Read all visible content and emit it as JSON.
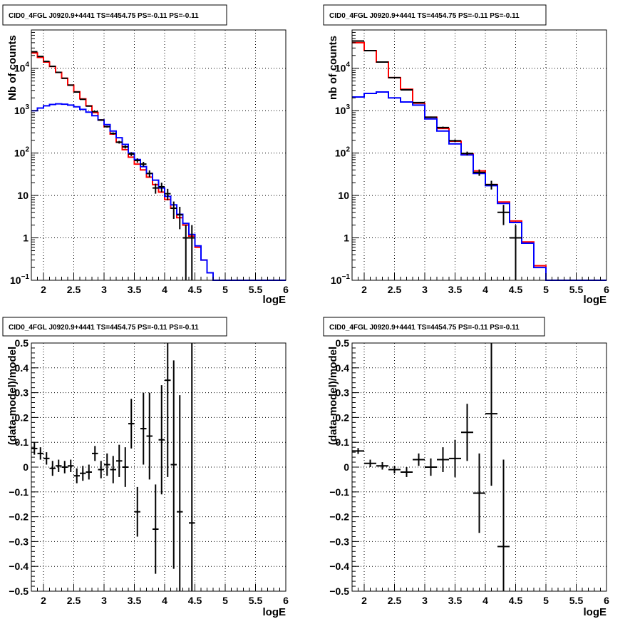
{
  "colors": {
    "model_total": "#ff0000",
    "model_source": "#0000ff",
    "data": "#000000",
    "grid": "#000000",
    "frame": "#000000",
    "background": "#ffffff"
  },
  "chart_data": [
    {
      "type": "line",
      "title": "CID0_4FGL J0920.9+4441 TS=4454.75 PS=-0.11 PS=-0.11",
      "xlabel": "logE",
      "ylabel": "Nb of counts",
      "xlim": [
        1.8,
        6.0
      ],
      "ylim": [
        0.1,
        80000
      ],
      "yscale": "log",
      "grid": true,
      "x_ticks": [
        "2",
        "2.5",
        "3",
        "3.5",
        "4",
        "4.5",
        "5",
        "5.5",
        "6"
      ],
      "y_ticks": [
        {
          "value": 0.1,
          "base": "10",
          "exp": "−1"
        },
        {
          "value": 1,
          "label": "1"
        },
        {
          "value": 10,
          "label": "10"
        },
        {
          "value": 100,
          "base": "10",
          "exp": "2"
        },
        {
          "value": 1000,
          "base": "10",
          "exp": "3"
        },
        {
          "value": 10000,
          "base": "10",
          "exp": "4"
        }
      ],
      "bin_edges": [
        1.8,
        1.9,
        2.0,
        2.1,
        2.2,
        2.3,
        2.4,
        2.5,
        2.6,
        2.7,
        2.8,
        2.9,
        3.0,
        3.1,
        3.2,
        3.3,
        3.4,
        3.5,
        3.6,
        3.7,
        3.8,
        3.9,
        4.0,
        4.1,
        4.2,
        4.3,
        4.4,
        4.5,
        4.6,
        4.7,
        4.8,
        4.9,
        5.0,
        5.1,
        5.2,
        5.3,
        5.4,
        5.5,
        5.6,
        5.7,
        5.8,
        5.9,
        6.0
      ],
      "series": [
        {
          "key": "model_total",
          "values": [
            23000,
            18000,
            14000,
            11000,
            8000,
            5800,
            4000,
            2800,
            1900,
            1300,
            900,
            600,
            420,
            280,
            180,
            120,
            80,
            55,
            40,
            27,
            18,
            12,
            8,
            5,
            3,
            2,
            1.1,
            0.6,
            0.3,
            0.15,
            0.1,
            0.1,
            0.1,
            0.1,
            0.1,
            0.1,
            0.1,
            0.1,
            0.1,
            0.1,
            0.1,
            0.1
          ]
        },
        {
          "key": "model_source",
          "values": [
            1000,
            1150,
            1300,
            1400,
            1450,
            1420,
            1350,
            1230,
            1070,
            920,
            760,
            600,
            470,
            330,
            230,
            160,
            100,
            70,
            48,
            33,
            23,
            15,
            9.5,
            6,
            3.6,
            2.2,
            1.2,
            0.65,
            0.3,
            0.15,
            0.1,
            0.1,
            0.1,
            0.1,
            0.1,
            0.1,
            0.1,
            0.1,
            0.1,
            0.1,
            0.1,
            0.1
          ]
        }
      ],
      "points": [
        {
          "x": 1.85,
          "y": 24500,
          "err": 160
        },
        {
          "x": 1.95,
          "y": 19000,
          "err": 140
        },
        {
          "x": 2.05,
          "y": 14500,
          "err": 120
        },
        {
          "x": 2.15,
          "y": 11100,
          "err": 105
        },
        {
          "x": 2.25,
          "y": 8000,
          "err": 90
        },
        {
          "x": 2.35,
          "y": 5800,
          "err": 76
        },
        {
          "x": 2.45,
          "y": 4000,
          "err": 63
        },
        {
          "x": 2.55,
          "y": 2750,
          "err": 52
        },
        {
          "x": 2.65,
          "y": 1850,
          "err": 43
        },
        {
          "x": 2.75,
          "y": 1280,
          "err": 36
        },
        {
          "x": 2.85,
          "y": 950,
          "err": 31
        },
        {
          "x": 2.95,
          "y": 600,
          "err": 25
        },
        {
          "x": 3.05,
          "y": 420,
          "err": 20
        },
        {
          "x": 3.15,
          "y": 290,
          "err": 17
        },
        {
          "x": 3.25,
          "y": 180,
          "err": 13
        },
        {
          "x": 3.35,
          "y": 140,
          "err": 12
        },
        {
          "x": 3.45,
          "y": 95,
          "err": 10
        },
        {
          "x": 3.55,
          "y": 67,
          "err": 8
        },
        {
          "x": 3.65,
          "y": 55,
          "err": 7
        },
        {
          "x": 3.75,
          "y": 33,
          "err": 6
        },
        {
          "x": 3.85,
          "y": 15,
          "err": 4
        },
        {
          "x": 3.95,
          "y": 16,
          "err": 4
        },
        {
          "x": 4.05,
          "y": 11,
          "err": 3.3
        },
        {
          "x": 4.15,
          "y": 5,
          "err": 2.2
        },
        {
          "x": 4.25,
          "y": 3.5,
          "err": 1.9
        },
        {
          "x": 4.35,
          "y": 1,
          "err": 1
        },
        {
          "x": 4.45,
          "y": 1,
          "err": 1
        }
      ]
    },
    {
      "type": "line",
      "title": "CID0_4FGL J0920.9+4441 TS=4454.75 PS=-0.11 PS=-0.11",
      "xlabel": "logE",
      "ylabel": "nb of counts",
      "xlim": [
        1.8,
        6.0
      ],
      "ylim": [
        0.1,
        80000
      ],
      "yscale": "log",
      "grid": true,
      "x_ticks": [
        "2",
        "2.5",
        "3",
        "3.5",
        "4",
        "4.5",
        "5",
        "5.5",
        "6"
      ],
      "y_ticks": [
        {
          "value": 0.1,
          "base": "10",
          "exp": "−1"
        },
        {
          "value": 1,
          "label": "1"
        },
        {
          "value": 10,
          "label": "10"
        },
        {
          "value": 100,
          "base": "10",
          "exp": "2"
        },
        {
          "value": 1000,
          "base": "10",
          "exp": "3"
        },
        {
          "value": 10000,
          "base": "10",
          "exp": "4"
        }
      ],
      "bin_edges": [
        1.8,
        2.0,
        2.2,
        2.4,
        2.6,
        2.8,
        3.0,
        3.2,
        3.4,
        3.6,
        3.8,
        4.0,
        4.2,
        4.4,
        4.6,
        4.8,
        5.0,
        5.2,
        5.4,
        5.6,
        5.8,
        6.0
      ],
      "series": [
        {
          "key": "model_total",
          "values": [
            40000,
            26000,
            14000,
            6000,
            3200,
            1500,
            700,
            380,
            190,
            95,
            38,
            18,
            7,
            2.5,
            0.8,
            0.22,
            0.1,
            0.1,
            0.1,
            0.1,
            0.1
          ]
        },
        {
          "key": "model_source",
          "values": [
            2100,
            2550,
            2750,
            2000,
            1600,
            1350,
            640,
            330,
            165,
            90,
            33,
            17,
            6.5,
            2.3,
            0.75,
            0.2,
            0.1,
            0.1,
            0.1,
            0.1,
            0.1
          ]
        }
      ],
      "points": [
        {
          "x": 1.9,
          "y": 44000,
          "err": 210
        },
        {
          "x": 2.1,
          "y": 26000,
          "err": 160
        },
        {
          "x": 2.3,
          "y": 14000,
          "err": 118
        },
        {
          "x": 2.5,
          "y": 6000,
          "err": 77
        },
        {
          "x": 2.7,
          "y": 3100,
          "err": 56
        },
        {
          "x": 2.9,
          "y": 1550,
          "err": 39
        },
        {
          "x": 3.1,
          "y": 700,
          "err": 26
        },
        {
          "x": 3.3,
          "y": 400,
          "err": 20
        },
        {
          "x": 3.5,
          "y": 195,
          "err": 14
        },
        {
          "x": 3.7,
          "y": 98,
          "err": 10
        },
        {
          "x": 3.9,
          "y": 35,
          "err": 6
        },
        {
          "x": 4.1,
          "y": 18,
          "err": 4.2
        },
        {
          "x": 4.3,
          "y": 4,
          "err": 2
        },
        {
          "x": 4.5,
          "y": 1,
          "err": 1
        }
      ]
    },
    {
      "type": "scatter",
      "title": "CID0_4FGL J0920.9+4441 TS=4454.75 PS=-0.11 PS=-0.11",
      "xlabel": "logE",
      "ylabel": "(data-model)/model",
      "xlim": [
        1.8,
        6.0
      ],
      "ylim": [
        -0.5,
        0.5
      ],
      "yscale": "linear",
      "grid": true,
      "x_ticks": [
        "2",
        "2.5",
        "3",
        "3.5",
        "4",
        "4.5",
        "5",
        "5.5",
        "6"
      ],
      "y_ticks": [
        {
          "value": -0.5,
          "label": "−0.5"
        },
        {
          "value": -0.4,
          "label": "−0.4"
        },
        {
          "value": -0.3,
          "label": "−0.3"
        },
        {
          "value": -0.2,
          "label": "−0.2"
        },
        {
          "value": -0.1,
          "label": "−0.1"
        },
        {
          "value": 0,
          "label": "0"
        },
        {
          "value": 0.1,
          "label": "0.1"
        },
        {
          "value": 0.2,
          "label": "0.2"
        },
        {
          "value": 0.3,
          "label": "0.3"
        },
        {
          "value": 0.4,
          "label": "0.4"
        },
        {
          "value": 0.5,
          "label": "0.5"
        }
      ],
      "xbin": 0.1,
      "points": [
        {
          "x": 1.85,
          "y": 0.075,
          "err": 0.025
        },
        {
          "x": 1.95,
          "y": 0.055,
          "err": 0.025
        },
        {
          "x": 2.05,
          "y": 0.035,
          "err": 0.025
        },
        {
          "x": 2.15,
          "y": -0.005,
          "err": 0.03
        },
        {
          "x": 2.25,
          "y": 0.005,
          "err": 0.025
        },
        {
          "x": 2.35,
          "y": 0.0,
          "err": 0.025
        },
        {
          "x": 2.45,
          "y": 0.005,
          "err": 0.025
        },
        {
          "x": 2.55,
          "y": -0.035,
          "err": 0.03
        },
        {
          "x": 2.65,
          "y": -0.025,
          "err": 0.03
        },
        {
          "x": 2.75,
          "y": -0.02,
          "err": 0.03
        },
        {
          "x": 2.85,
          "y": 0.055,
          "err": 0.03
        },
        {
          "x": 2.95,
          "y": -0.01,
          "err": 0.035
        },
        {
          "x": 3.05,
          "y": 0.01,
          "err": 0.045
        },
        {
          "x": 3.15,
          "y": -0.01,
          "err": 0.055
        },
        {
          "x": 3.25,
          "y": 0.025,
          "err": 0.065
        },
        {
          "x": 3.35,
          "y": 0.0,
          "err": 0.08
        },
        {
          "x": 3.45,
          "y": 0.175,
          "err": 0.1
        },
        {
          "x": 3.55,
          "y": -0.18,
          "err": 0.1
        },
        {
          "x": 3.65,
          "y": 0.155,
          "err": 0.145
        },
        {
          "x": 3.75,
          "y": 0.125,
          "err": 0.175
        },
        {
          "x": 3.85,
          "y": -0.25,
          "err": 0.18
        },
        {
          "x": 3.95,
          "y": 0.11,
          "err": 0.22
        },
        {
          "x": 4.05,
          "y": 0.35,
          "err": 0.39
        },
        {
          "x": 4.15,
          "y": 0.01,
          "err": 0.42
        },
        {
          "x": 4.25,
          "y": -0.18,
          "err": 0.47
        },
        {
          "x": 4.45,
          "y": -0.225,
          "err": 0.85
        }
      ]
    },
    {
      "type": "scatter",
      "title": "CID0_4FGL J0920.9+4441 TS=4454.75 PS=-0.11 PS=-0.11",
      "xlabel": "logE",
      "ylabel": "(data-model)/model",
      "xlim": [
        1.8,
        6.0
      ],
      "ylim": [
        -0.5,
        0.5
      ],
      "yscale": "linear",
      "grid": true,
      "x_ticks": [
        "2",
        "2.5",
        "3",
        "3.5",
        "4",
        "4.5",
        "5",
        "5.5",
        "6"
      ],
      "y_ticks": [
        {
          "value": -0.5,
          "label": "−0.5"
        },
        {
          "value": -0.4,
          "label": "−0.4"
        },
        {
          "value": -0.3,
          "label": "−0.3"
        },
        {
          "value": -0.2,
          "label": "−0.2"
        },
        {
          "value": -0.1,
          "label": "−0.1"
        },
        {
          "value": 0,
          "label": "0"
        },
        {
          "value": 0.1,
          "label": "0.1"
        },
        {
          "value": 0.2,
          "label": "0.2"
        },
        {
          "value": 0.3,
          "label": "0.3"
        },
        {
          "value": 0.4,
          "label": "0.4"
        },
        {
          "value": 0.5,
          "label": "0.5"
        }
      ],
      "xbin": 0.2,
      "points": [
        {
          "x": 1.9,
          "y": 0.065,
          "err": 0.012
        },
        {
          "x": 2.1,
          "y": 0.015,
          "err": 0.015
        },
        {
          "x": 2.3,
          "y": 0.005,
          "err": 0.015
        },
        {
          "x": 2.5,
          "y": -0.01,
          "err": 0.015
        },
        {
          "x": 2.7,
          "y": -0.02,
          "err": 0.02
        },
        {
          "x": 2.9,
          "y": 0.03,
          "err": 0.025
        },
        {
          "x": 3.1,
          "y": 0.0,
          "err": 0.035
        },
        {
          "x": 3.3,
          "y": 0.03,
          "err": 0.05
        },
        {
          "x": 3.5,
          "y": 0.035,
          "err": 0.075
        },
        {
          "x": 3.7,
          "y": 0.14,
          "err": 0.115
        },
        {
          "x": 3.9,
          "y": -0.105,
          "err": 0.16
        },
        {
          "x": 4.1,
          "y": 0.215,
          "err": 0.29
        },
        {
          "x": 4.3,
          "y": -0.32,
          "err": 0.35
        }
      ]
    }
  ]
}
